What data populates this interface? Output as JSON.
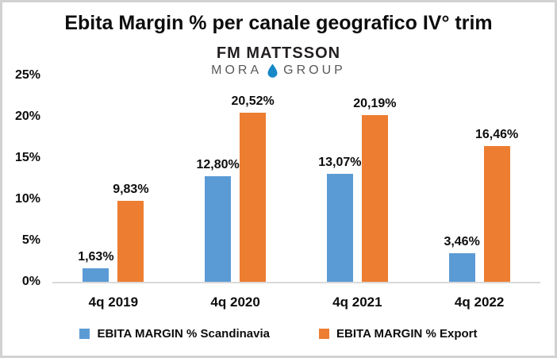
{
  "title": "Ebita Margin % per canale geografico IV° trim",
  "logo": {
    "line1": "FM MATTSSON",
    "line2_left": "MORA",
    "line2_right": "GROUP",
    "droplet_icon": "water-drop-icon",
    "colors": {
      "line1": "#231f20",
      "line2": "#58595b",
      "droplet": "#1787c8"
    }
  },
  "chart_data": {
    "type": "bar",
    "title": "Ebita Margin % per canale geografico IV° trim",
    "categories": [
      "4q 2019",
      "4q 2020",
      "4q 2021",
      "4q 2022"
    ],
    "series": [
      {
        "name": "EBITA MARGIN % Scandinavia",
        "color": "#5B9BD5",
        "values": [
          1.63,
          12.8,
          13.07,
          3.46
        ],
        "data_labels": [
          "1,63%",
          "12,80%",
          "13,07%",
          "3,46%"
        ]
      },
      {
        "name": "EBITA MARGIN % Export",
        "color": "#ED7D31",
        "values": [
          9.83,
          20.52,
          20.19,
          16.46
        ],
        "data_labels": [
          "9,83%",
          "20,52%",
          "20,19%",
          "16,46%"
        ]
      }
    ],
    "y_axis": {
      "min": 0,
      "max": 25,
      "step": 5,
      "tick_labels": [
        "0%",
        "5%",
        "10%",
        "15%",
        "20%",
        "25%"
      ]
    },
    "grid": false,
    "legend_position": "bottom",
    "axis_line_color": "#d9d9d9"
  },
  "legend": {
    "items": [
      {
        "label": "EBITA MARGIN % Scandinavia",
        "color": "#5B9BD5"
      },
      {
        "label": "EBITA MARGIN % Export",
        "color": "#ED7D31"
      }
    ]
  }
}
